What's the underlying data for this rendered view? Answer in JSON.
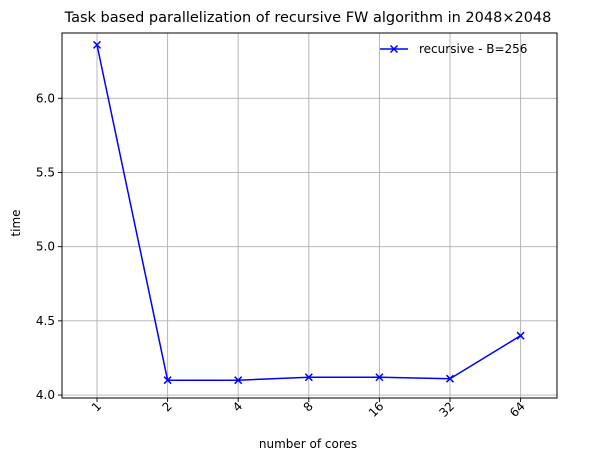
{
  "chart_data": {
    "type": "line",
    "title": "Task based parallelization of recursive FW algorithm in 2048×2048",
    "xlabel": "number of cores",
    "ylabel": "time",
    "categories": [
      "1",
      "2",
      "4",
      "8",
      "16",
      "32",
      "64"
    ],
    "ylim": [
      3.98,
      6.44
    ],
    "yticks": [
      "4.0",
      "4.5",
      "5.0",
      "5.5",
      "6.0"
    ],
    "grid": true,
    "legend_position": "top-right",
    "series": [
      {
        "name": "recursive - B=256",
        "color": "#0000ff",
        "marker": "x",
        "values": [
          6.36,
          4.1,
          4.1,
          4.12,
          4.12,
          4.11,
          4.4
        ]
      }
    ]
  }
}
